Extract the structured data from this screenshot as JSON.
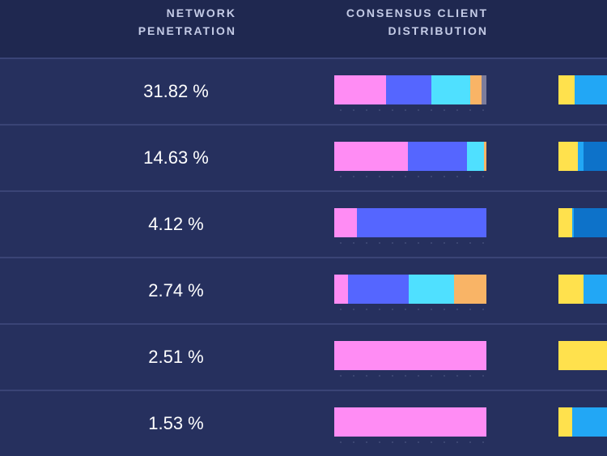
{
  "header": {
    "penetration_line1": "NETWORK",
    "penetration_line2": "PENETRATION",
    "consensus_line1": "CONSENSUS CLIENT",
    "consensus_line2": "DISTRIBUTION"
  },
  "colors": {
    "pink": "#ff8cf4",
    "blue": "#5566ff",
    "cyan": "#4fe0ff",
    "orange": "#f9b466",
    "grey": "#7c7c9c",
    "yellow": "#ffe14d",
    "sky": "#22a7f5",
    "navy_blue": "#0d72c9"
  },
  "rows": [
    {
      "penetration": "31.82 %",
      "consensus": [
        {
          "color": "#ff8cf4",
          "share": 0.34
        },
        {
          "color": "#5566ff",
          "share": 0.3
        },
        {
          "color": "#4fe0ff",
          "share": 0.255
        },
        {
          "color": "#f9b466",
          "share": 0.075
        },
        {
          "color": "#7c7c9c",
          "share": 0.03
        }
      ],
      "execution": [
        {
          "color": "#ffe14d",
          "share": 0.33
        },
        {
          "color": "#22a7f5",
          "share": 0.67
        }
      ]
    },
    {
      "penetration": "14.63 %",
      "consensus": [
        {
          "color": "#ff8cf4",
          "share": 0.485
        },
        {
          "color": "#5566ff",
          "share": 0.39
        },
        {
          "color": "#4fe0ff",
          "share": 0.11
        },
        {
          "color": "#f9b466",
          "share": 0.015
        }
      ],
      "execution": [
        {
          "color": "#ffe14d",
          "share": 0.4
        },
        {
          "color": "#22a7f5",
          "share": 0.12
        },
        {
          "color": "#0d72c9",
          "share": 0.48
        }
      ]
    },
    {
      "penetration": "4.12 %",
      "consensus": [
        {
          "color": "#ff8cf4",
          "share": 0.15
        },
        {
          "color": "#5566ff",
          "share": 0.85
        }
      ],
      "execution": [
        {
          "color": "#ffe14d",
          "share": 0.28
        },
        {
          "color": "#22a7f5",
          "share": 0.04
        },
        {
          "color": "#0d72c9",
          "share": 0.68
        }
      ]
    },
    {
      "penetration": "2.74 %",
      "consensus": [
        {
          "color": "#ff8cf4",
          "share": 0.09
        },
        {
          "color": "#5566ff",
          "share": 0.4
        },
        {
          "color": "#4fe0ff",
          "share": 0.3
        },
        {
          "color": "#f9b466",
          "share": 0.21
        }
      ],
      "execution": [
        {
          "color": "#ffe14d",
          "share": 0.52
        },
        {
          "color": "#22a7f5",
          "share": 0.48
        }
      ]
    },
    {
      "penetration": "2.51 %",
      "consensus": [
        {
          "color": "#ff8cf4",
          "share": 1.0
        }
      ],
      "execution": [
        {
          "color": "#ffe14d",
          "share": 1.0
        }
      ]
    },
    {
      "penetration": "1.53 %",
      "consensus": [
        {
          "color": "#ff8cf4",
          "share": 1.0
        }
      ],
      "execution": [
        {
          "color": "#ffe14d",
          "share": 0.28
        },
        {
          "color": "#22a7f5",
          "share": 0.72
        }
      ]
    }
  ]
}
